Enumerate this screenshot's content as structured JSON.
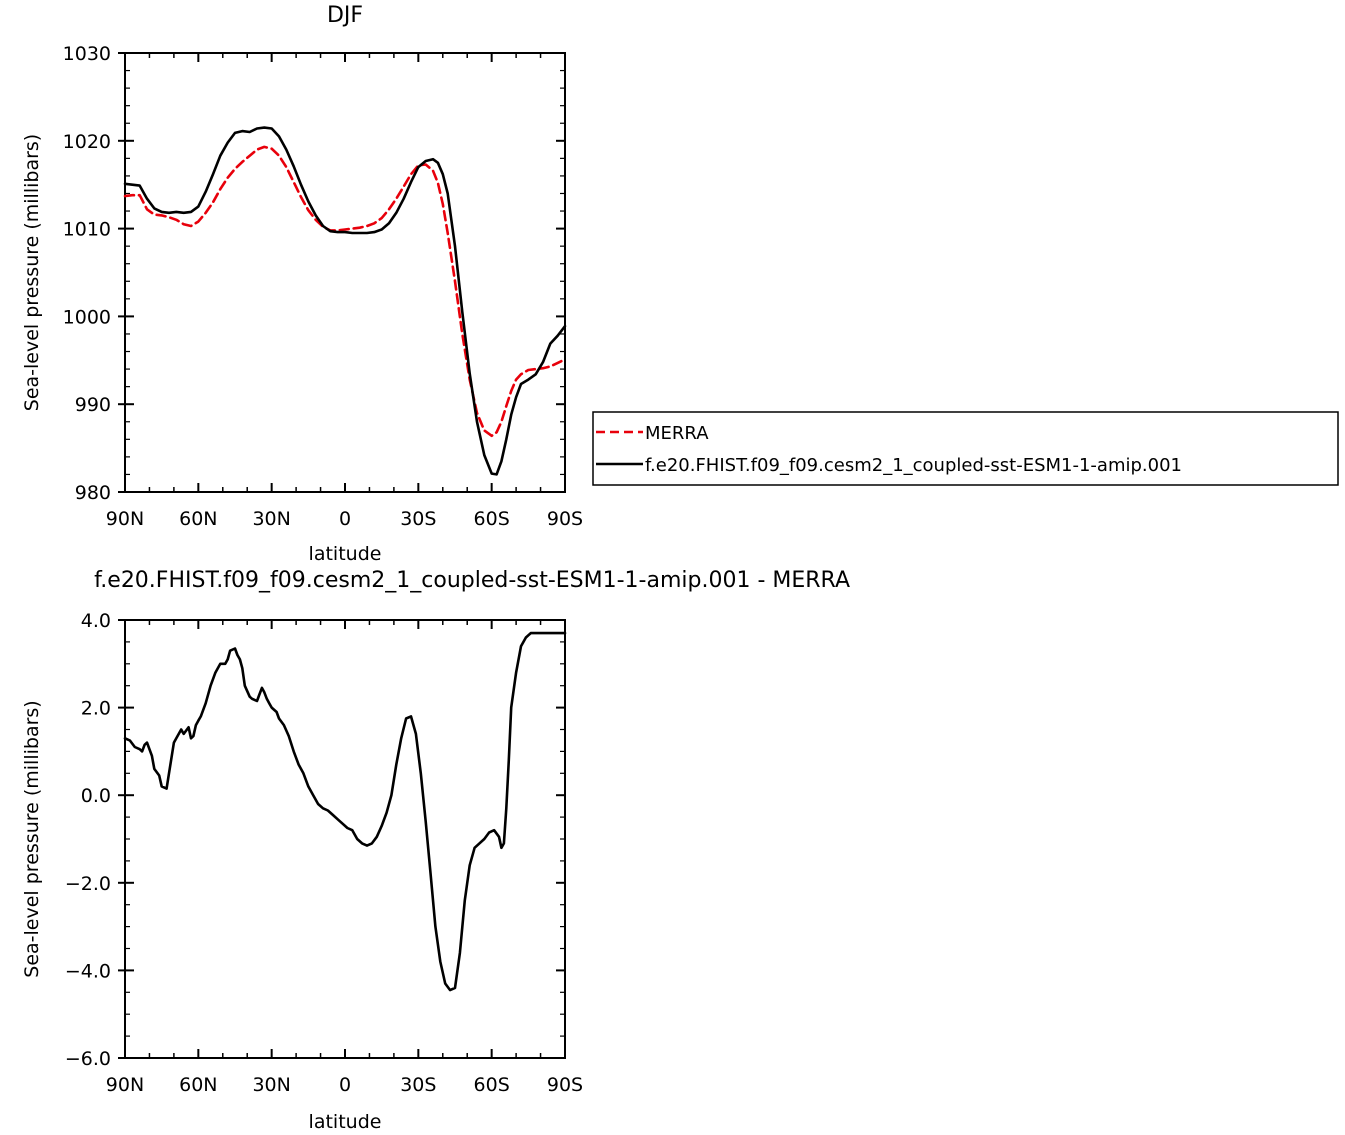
{
  "chart_data": [
    {
      "type": "line",
      "title": "DJF",
      "xlabel": "latitude",
      "ylabel": "Sea-level pressure (millibars)",
      "x_ticklabels": [
        "90N",
        "60N",
        "30N",
        "0",
        "30S",
        "60S",
        "90S"
      ],
      "x_tick_values": [
        90,
        60,
        30,
        0,
        -30,
        -60,
        -90
      ],
      "xlim": [
        90,
        -90
      ],
      "ylim": [
        980,
        1030
      ],
      "yticks": [
        980,
        990,
        1000,
        1010,
        1020,
        1030
      ],
      "y_ticklabels": [
        "980",
        "990",
        "1000",
        "1010",
        "1020",
        "1030"
      ],
      "legend_position": "right, outside plot",
      "series": [
        {
          "name": "MERRA",
          "color": "#e8000b",
          "dash": "dashed",
          "x": [
            90,
            87,
            84,
            81,
            78,
            75,
            72,
            69,
            66,
            63,
            60,
            57,
            54,
            51,
            48,
            45,
            42,
            39,
            36,
            33,
            30,
            27,
            24,
            21,
            18,
            15,
            12,
            9,
            6,
            3,
            0,
            -3,
            -6,
            -9,
            -12,
            -15,
            -18,
            -21,
            -24,
            -27,
            -30,
            -33,
            -36,
            -38,
            -40,
            -42,
            -45,
            -48,
            -51,
            -54,
            -57,
            -60,
            -62,
            -64,
            -66,
            -68,
            -70,
            -72,
            -75,
            -78,
            -81,
            -84,
            -87,
            -90
          ],
          "y": [
            1013.7,
            1013.8,
            1013.8,
            1012.2,
            1011.6,
            1011.5,
            1011.3,
            1011.0,
            1010.5,
            1010.3,
            1010.8,
            1011.8,
            1013.0,
            1014.5,
            1015.8,
            1016.8,
            1017.6,
            1018.3,
            1019.0,
            1019.3,
            1019.1,
            1018.3,
            1017.0,
            1015.3,
            1013.6,
            1012.1,
            1011.0,
            1010.2,
            1009.8,
            1009.8,
            1009.9,
            1010.0,
            1010.1,
            1010.3,
            1010.6,
            1011.2,
            1012.2,
            1013.4,
            1014.8,
            1016.2,
            1017.2,
            1017.3,
            1016.6,
            1015.2,
            1012.8,
            1009.5,
            1004.0,
            998.0,
            992.8,
            989.0,
            987.0,
            986.4,
            986.8,
            988.0,
            989.8,
            991.5,
            992.8,
            993.4,
            993.9,
            994.0,
            994.1,
            994.3,
            994.7,
            995.1
          ]
        },
        {
          "name": "f.e20.FHIST.f09_f09.cesm2_1_coupled-sst-ESM1-1-amip.001",
          "color": "#000000",
          "dash": "solid",
          "x": [
            90,
            87,
            84,
            81,
            78,
            75,
            72,
            69,
            66,
            63,
            60,
            57,
            54,
            51,
            48,
            45,
            42,
            39,
            36,
            33,
            30,
            27,
            24,
            21,
            18,
            15,
            12,
            9,
            6,
            3,
            0,
            -3,
            -6,
            -9,
            -12,
            -15,
            -18,
            -21,
            -24,
            -27,
            -30,
            -33,
            -36,
            -38,
            -40,
            -42,
            -45,
            -48,
            -51,
            -54,
            -57,
            -60,
            -62,
            -64,
            -66,
            -68,
            -70,
            -72,
            -75,
            -78,
            -81,
            -84,
            -87,
            -90
          ],
          "y": [
            1015.1,
            1015.0,
            1014.9,
            1013.4,
            1012.3,
            1011.9,
            1011.8,
            1011.9,
            1011.8,
            1011.9,
            1012.5,
            1014.2,
            1016.2,
            1018.3,
            1019.8,
            1020.9,
            1021.1,
            1021.0,
            1021.4,
            1021.5,
            1021.4,
            1020.5,
            1019.0,
            1017.1,
            1015.0,
            1013.1,
            1011.5,
            1010.3,
            1009.7,
            1009.6,
            1009.6,
            1009.5,
            1009.5,
            1009.5,
            1009.6,
            1009.9,
            1010.6,
            1011.8,
            1013.4,
            1015.3,
            1017.0,
            1017.7,
            1017.9,
            1017.5,
            1016.2,
            1014.0,
            1008.0,
            1000.5,
            993.5,
            988.0,
            984.2,
            982.1,
            982.0,
            983.5,
            986.0,
            988.8,
            990.8,
            992.3,
            992.8,
            993.4,
            994.8,
            996.9,
            997.8,
            998.9
          ]
        }
      ]
    },
    {
      "type": "line",
      "title": "f.e20.FHIST.f09_f09.cesm2_1_coupled-sst-ESM1-1-amip.001 - MERRA",
      "xlabel": "latitude",
      "ylabel": "Sea-level pressure (millibars)",
      "x_ticklabels": [
        "90N",
        "60N",
        "30N",
        "0",
        "30S",
        "60S",
        "90S"
      ],
      "x_tick_values": [
        90,
        60,
        30,
        0,
        -30,
        -60,
        -90
      ],
      "xlim": [
        90,
        -90
      ],
      "ylim": [
        -6.0,
        4.0
      ],
      "yticks": [
        -6,
        -4,
        -2,
        0,
        2,
        4
      ],
      "y_ticklabels": [
        "−6.0",
        "−4.0",
        "−2.0",
        "0.0",
        "2.0",
        "4.0"
      ],
      "series": [
        {
          "color": "#000000",
          "dash": "solid",
          "x": [
            90,
            88,
            86,
            84,
            83,
            82,
            81,
            79,
            78,
            76,
            75,
            73,
            72,
            70,
            69,
            67,
            66,
            64,
            63,
            62,
            61,
            60,
            59,
            57,
            55,
            53,
            51,
            49,
            48,
            47,
            45,
            44,
            43,
            42,
            41,
            39,
            38,
            36,
            35,
            34,
            33,
            32,
            31,
            30,
            28,
            27,
            25,
            23,
            21,
            19,
            17,
            15,
            13,
            11,
            9,
            7,
            5,
            3,
            1,
            -1,
            -3,
            -5,
            -7,
            -9,
            -11,
            -13,
            -15,
            -17,
            -19,
            -21,
            -23,
            -25,
            -27,
            -29,
            -31,
            -33,
            -35,
            -37,
            -39,
            -41,
            -43,
            -45,
            -47,
            -49,
            -51,
            -53,
            -55,
            -57,
            -59,
            -61,
            -63,
            -64,
            -65,
            -66,
            -67,
            -68,
            -70,
            -72,
            -74,
            -75,
            -76,
            -77,
            -78,
            -79,
            -80,
            -81,
            -82,
            -83,
            -84,
            -85,
            -86,
            -87,
            -88,
            -89,
            -90
          ],
          "y": [
            1.3,
            1.25,
            1.1,
            1.05,
            1.0,
            1.15,
            1.2,
            0.9,
            0.6,
            0.45,
            0.2,
            0.15,
            0.5,
            1.2,
            1.3,
            1.5,
            1.4,
            1.55,
            1.3,
            1.35,
            1.6,
            1.7,
            1.8,
            2.1,
            2.5,
            2.8,
            3.0,
            3.0,
            3.1,
            3.3,
            3.35,
            3.2,
            3.1,
            2.9,
            2.5,
            2.25,
            2.2,
            2.15,
            2.3,
            2.45,
            2.35,
            2.2,
            2.1,
            2.0,
            1.9,
            1.75,
            1.6,
            1.35,
            1.0,
            0.7,
            0.5,
            0.2,
            0.0,
            -0.2,
            -0.3,
            -0.35,
            -0.45,
            -0.55,
            -0.65,
            -0.75,
            -0.8,
            -1.0,
            -1.1,
            -1.15,
            -1.1,
            -0.95,
            -0.7,
            -0.4,
            0.0,
            0.7,
            1.3,
            1.75,
            1.8,
            1.4,
            0.5,
            -0.6,
            -1.8,
            -3.0,
            -3.8,
            -4.3,
            -4.45,
            -4.4,
            -3.6,
            -2.4,
            -1.6,
            -1.2,
            -1.1,
            -1.0,
            -0.85,
            -0.8,
            -0.95,
            -1.2,
            -1.1,
            -0.3,
            0.8,
            2.0,
            2.8,
            3.4,
            3.6,
            3.65,
            3.7,
            3.7,
            3.7,
            3.7,
            3.7,
            3.7,
            3.7,
            3.7,
            3.7,
            3.7,
            3.7,
            3.7,
            3.7,
            3.7,
            3.7
          ]
        }
      ]
    }
  ]
}
